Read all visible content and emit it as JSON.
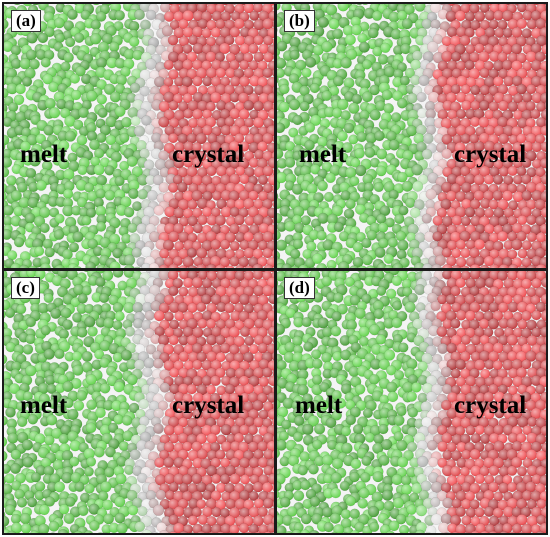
{
  "figure": {
    "panels": [
      {
        "label": "(a)",
        "left_region": "melt",
        "right_region": "crystal"
      },
      {
        "label": "(b)",
        "left_region": "melt",
        "right_region": "crystal"
      },
      {
        "label": "(c)",
        "left_region": "melt",
        "right_region": "crystal"
      },
      {
        "label": "(d)",
        "left_region": "melt",
        "right_region": "crystal"
      }
    ],
    "colors": {
      "melt": "#5fc84a",
      "interface": "#d9d9d9",
      "crystal": "#e0484c",
      "border": "#1a1a1a"
    }
  }
}
